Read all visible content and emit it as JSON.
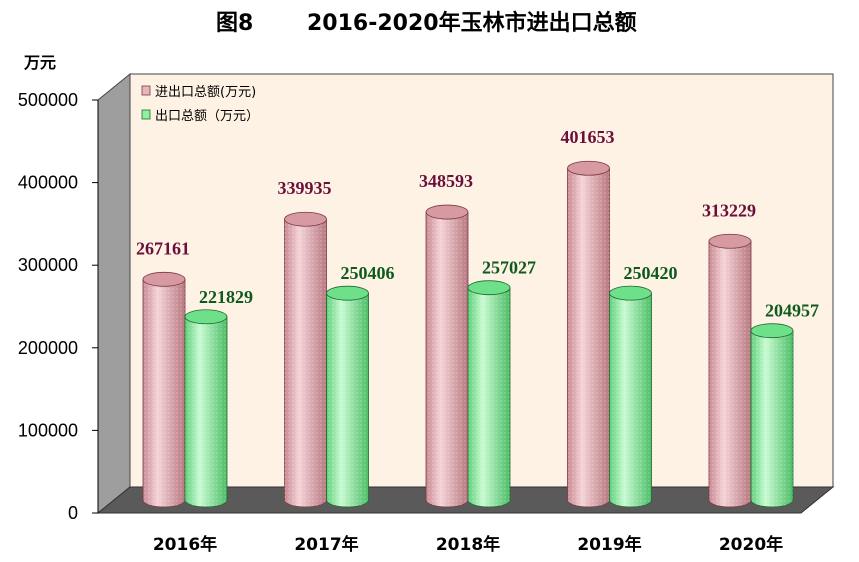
{
  "chart_data": {
    "type": "bar",
    "title_prefix": "图8",
    "title": "2016-2020年玉林市进出口总额",
    "ylabel": "万元",
    "ylim": [
      0,
      500000
    ],
    "yticks": [
      "0",
      "100000",
      "200000",
      "300000",
      "400000",
      "500000"
    ],
    "categories": [
      "2016年",
      "2017年",
      "2018年",
      "2019年",
      "2020年"
    ],
    "series": [
      {
        "name": "进出口总额(万元)",
        "values": [
          267161,
          339935,
          348593,
          401653,
          313229
        ],
        "color": "#e8b7bd"
      },
      {
        "name": "出口总额（万元）",
        "values": [
          221829,
          250406,
          257027,
          250420,
          204957
        ],
        "color": "#8ef0a0"
      }
    ],
    "legend_position": "top-left",
    "grid": false,
    "colors": {
      "wall": "#fdf2e4",
      "side_wall": "#9e9e9e",
      "floor": "#5a5a5a",
      "total_label": "#6b0f3a",
      "export_label": "#0e5a1e"
    }
  }
}
